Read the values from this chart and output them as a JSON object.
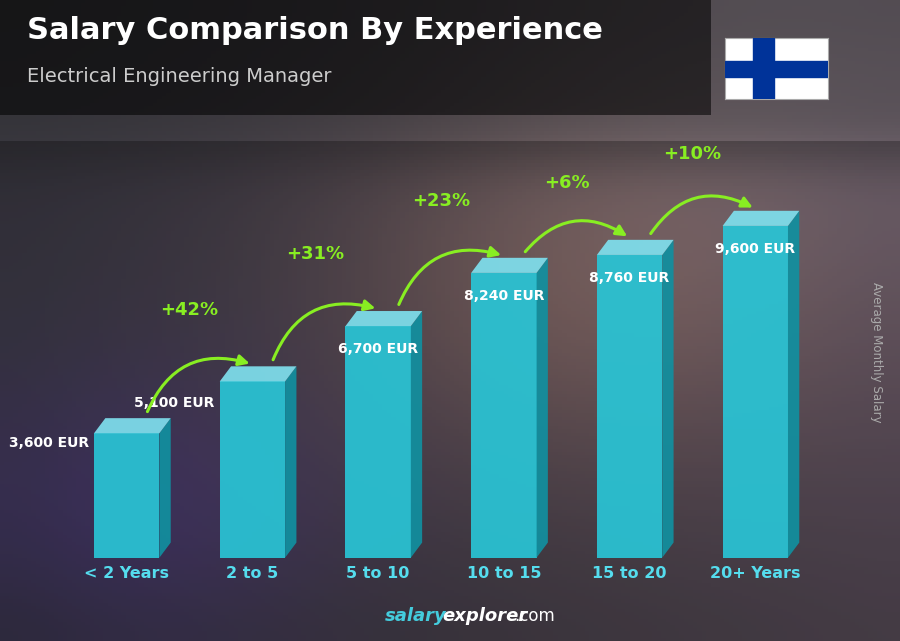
{
  "title": "Salary Comparison By Experience",
  "subtitle": "Electrical Engineering Manager",
  "categories": [
    "< 2 Years",
    "2 to 5",
    "5 to 10",
    "10 to 15",
    "15 to 20",
    "20+ Years"
  ],
  "values": [
    3600,
    5100,
    6700,
    8240,
    8760,
    9600
  ],
  "value_labels": [
    "3,600 EUR",
    "5,100 EUR",
    "6,700 EUR",
    "8,240 EUR",
    "8,760 EUR",
    "9,600 EUR"
  ],
  "pct_changes": [
    "+42%",
    "+31%",
    "+23%",
    "+6%",
    "+10%"
  ],
  "bar_face_color": "#29c5d6",
  "bar_side_color": "#1190a0",
  "bar_top_color": "#7fe0ee",
  "pct_color": "#88ee22",
  "arrow_color": "#88ee22",
  "value_label_color": "#ffffff",
  "cat_label_color": "#55ddee",
  "title_color": "#ffffff",
  "subtitle_color": "#dddddd",
  "bg_top_color": "#4a5060",
  "bg_mid_color": "#606878",
  "bg_bot_color": "#384048",
  "ylabel_text": "Average Monthly Salary",
  "footer_salary_color": "#44ccdd",
  "footer_explorer_color": "#ffffff",
  "ylim": [
    0,
    11500
  ],
  "fig_width": 9.0,
  "fig_height": 6.41
}
